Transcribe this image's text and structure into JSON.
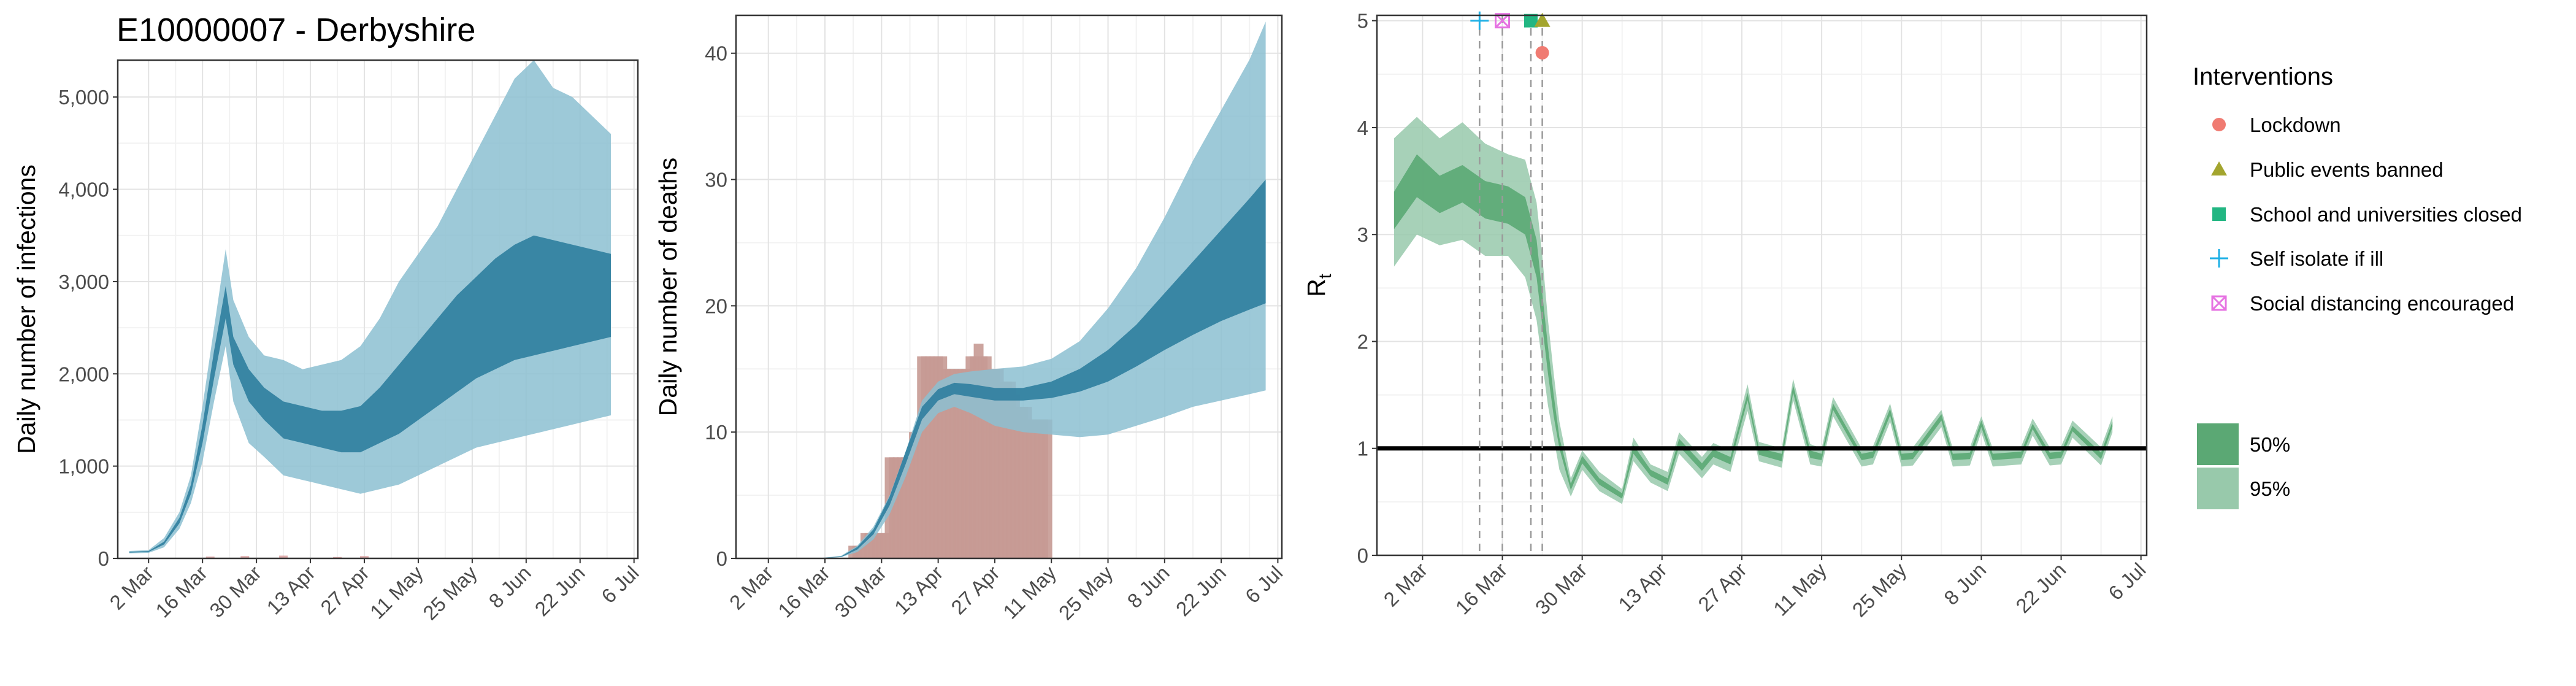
{
  "title": "E10000007 - Derbyshire",
  "colors": {
    "blue_band_95": "#8cbfd1",
    "blue_band_50": "#2f7e9f",
    "bars_infections": "#d89a9a",
    "bars_deaths": "#c79a94",
    "green_band_95": "#98c9ab",
    "green_band_50": "#5ba874",
    "lockdown": "#f07b72",
    "public_events": "#a3a52e",
    "schools": "#22b682",
    "self_isolate": "#1eb0e6",
    "social_distancing": "#e673e2"
  },
  "x_ticks": [
    "2 Mar",
    "16 Mar",
    "30 Mar",
    "13 Apr",
    "27 Apr",
    "11 May",
    "25 May",
    "8 Jun",
    "22 Jun",
    "6 Jul"
  ],
  "panels": {
    "infections": {
      "ylabel": "Daily number of infections",
      "y_ticks": [
        "0",
        "1,000",
        "2,000",
        "3,000",
        "4,000",
        "5,000"
      ]
    },
    "deaths": {
      "ylabel": "Daily number of deaths",
      "y_ticks": [
        "0",
        "10",
        "20",
        "30",
        "40"
      ]
    },
    "rt": {
      "ylabel": "R",
      "ylabel_sub": "t",
      "y_ticks": [
        "0",
        "1",
        "2",
        "3",
        "4",
        "5"
      ]
    }
  },
  "legend": {
    "title": "Interventions",
    "items": [
      {
        "label": "Lockdown",
        "icon": "circle-icon"
      },
      {
        "label": "Public events banned",
        "icon": "triangle-icon"
      },
      {
        "label": "School and universities closed",
        "icon": "square-icon"
      },
      {
        "label": "Self isolate if ill",
        "icon": "plus-icon"
      },
      {
        "label": "Social distancing encouraged",
        "icon": "boxed-x-icon"
      }
    ],
    "ci": [
      {
        "label": "50%"
      },
      {
        "label": "95%"
      }
    ]
  },
  "chart_data": [
    {
      "type": "area",
      "title": "E10000007 - Derbyshire",
      "ylabel": "Daily number of infections",
      "x_type": "date",
      "xlim": [
        "2020-02-23",
        "2020-07-07"
      ],
      "ylim": [
        0,
        5400
      ],
      "series": [
        {
          "name": "95%",
          "x": [
            "2020-02-26",
            "2020-03-02",
            "2020-03-06",
            "2020-03-10",
            "2020-03-13",
            "2020-03-16",
            "2020-03-19",
            "2020-03-22",
            "2020-03-24",
            "2020-03-28",
            "2020-04-01",
            "2020-04-06",
            "2020-04-11",
            "2020-04-16",
            "2020-04-21",
            "2020-04-26",
            "2020-05-01",
            "2020-05-06",
            "2020-05-11",
            "2020-05-16",
            "2020-05-21",
            "2020-05-26",
            "2020-05-31",
            "2020-06-05",
            "2020-06-10",
            "2020-06-15",
            "2020-06-20",
            "2020-06-25",
            "2020-06-30"
          ],
          "lower": [
            55,
            60,
            120,
            320,
            600,
            1050,
            1700,
            2300,
            1700,
            1250,
            1100,
            900,
            850,
            800,
            750,
            700,
            750,
            800,
            900,
            1000,
            1100,
            1200,
            1250,
            1300,
            1350,
            1400,
            1450,
            1500,
            1550
          ],
          "upper": [
            80,
            90,
            220,
            500,
            900,
            1650,
            2500,
            3350,
            2800,
            2400,
            2200,
            2150,
            2050,
            2100,
            2150,
            2300,
            2600,
            3000,
            3300,
            3600,
            4000,
            4400,
            4800,
            5200,
            5400,
            5100,
            5000,
            4800,
            4600
          ]
        },
        {
          "name": "50%",
          "x": [
            "2020-02-26",
            "2020-03-02",
            "2020-03-06",
            "2020-03-10",
            "2020-03-13",
            "2020-03-16",
            "2020-03-19",
            "2020-03-22",
            "2020-03-24",
            "2020-03-28",
            "2020-04-01",
            "2020-04-06",
            "2020-04-11",
            "2020-04-16",
            "2020-04-21",
            "2020-04-26",
            "2020-05-01",
            "2020-05-06",
            "2020-05-11",
            "2020-05-16",
            "2020-05-21",
            "2020-05-26",
            "2020-05-31",
            "2020-06-05",
            "2020-06-10",
            "2020-06-15",
            "2020-06-20",
            "2020-06-25",
            "2020-06-30"
          ],
          "lower": [
            62,
            70,
            150,
            380,
            700,
            1250,
            1950,
            2600,
            2100,
            1700,
            1500,
            1300,
            1250,
            1200,
            1150,
            1150,
            1250,
            1350,
            1500,
            1650,
            1800,
            1950,
            2050,
            2150,
            2200,
            2250,
            2300,
            2350,
            2400
          ],
          "upper": [
            72,
            80,
            180,
            440,
            800,
            1450,
            2250,
            2950,
            2400,
            2050,
            1850,
            1700,
            1650,
            1600,
            1600,
            1650,
            1850,
            2100,
            2350,
            2600,
            2850,
            3050,
            3250,
            3400,
            3500,
            3450,
            3400,
            3350,
            3300
          ]
        }
      ],
      "bars": {
        "x": [
          "2020-03-18",
          "2020-03-27",
          "2020-04-06",
          "2020-04-20",
          "2020-04-27"
        ],
        "values": [
          20,
          25,
          30,
          15,
          25
        ]
      }
    },
    {
      "type": "area",
      "ylabel": "Daily number of deaths",
      "x_type": "date",
      "xlim": [
        "2020-02-23",
        "2020-07-07"
      ],
      "ylim": [
        0,
        43
      ],
      "series": [
        {
          "name": "95%",
          "x": [
            "2020-03-14",
            "2020-03-20",
            "2020-03-24",
            "2020-03-28",
            "2020-04-01",
            "2020-04-05",
            "2020-04-09",
            "2020-04-13",
            "2020-04-17",
            "2020-04-21",
            "2020-04-27",
            "2020-05-04",
            "2020-05-11",
            "2020-05-18",
            "2020-05-25",
            "2020-06-01",
            "2020-06-08",
            "2020-06-15",
            "2020-06-22",
            "2020-06-29",
            "2020-07-03"
          ],
          "lower": [
            0,
            0.1,
            0.5,
            1.5,
            3.5,
            6.5,
            10,
            11.5,
            12,
            11.5,
            10.5,
            10,
            9.8,
            9.6,
            9.8,
            10.5,
            11.2,
            12,
            12.5,
            13,
            13.3
          ],
          "upper": [
            0,
            0.2,
            1,
            2.5,
            5,
            8.5,
            12.5,
            14,
            14.6,
            14.8,
            15,
            15.2,
            15.8,
            17.2,
            19.8,
            23,
            27,
            31.5,
            35.5,
            39.5,
            42.5
          ]
        },
        {
          "name": "50%",
          "x": [
            "2020-03-14",
            "2020-03-20",
            "2020-03-24",
            "2020-03-28",
            "2020-04-01",
            "2020-04-05",
            "2020-04-09",
            "2020-04-13",
            "2020-04-17",
            "2020-04-21",
            "2020-04-27",
            "2020-05-04",
            "2020-05-11",
            "2020-05-18",
            "2020-05-25",
            "2020-06-01",
            "2020-06-08",
            "2020-06-15",
            "2020-06-22",
            "2020-06-29",
            "2020-07-03"
          ],
          "lower": [
            0,
            0.1,
            0.7,
            1.9,
            4.2,
            7.5,
            11,
            12.5,
            13,
            12.8,
            12.5,
            12.5,
            12.7,
            13.2,
            14,
            15.2,
            16.5,
            17.7,
            18.8,
            19.7,
            20.2
          ],
          "upper": [
            0,
            0.15,
            0.9,
            2.3,
            4.9,
            8.5,
            12,
            13.4,
            13.9,
            13.8,
            13.5,
            13.5,
            14,
            15,
            16.5,
            18.5,
            21,
            23.5,
            26,
            28.5,
            30
          ]
        }
      ],
      "bars": {
        "x": [
          "2020-03-23",
          "2020-03-24",
          "2020-03-25",
          "2020-03-26",
          "2020-03-27",
          "2020-03-28",
          "2020-03-29",
          "2020-03-30",
          "2020-03-31",
          "2020-04-01",
          "2020-04-02",
          "2020-04-03",
          "2020-04-04",
          "2020-04-05",
          "2020-04-06",
          "2020-04-07",
          "2020-04-08",
          "2020-04-09",
          "2020-04-10",
          "2020-04-11",
          "2020-04-12",
          "2020-04-13",
          "2020-04-14",
          "2020-04-15",
          "2020-04-16",
          "2020-04-17",
          "2020-04-18",
          "2020-04-19",
          "2020-04-20",
          "2020-04-21",
          "2020-04-22",
          "2020-04-23",
          "2020-04-24",
          "2020-04-25",
          "2020-04-26",
          "2020-04-27",
          "2020-04-28",
          "2020-04-29",
          "2020-04-30",
          "2020-05-01",
          "2020-05-02",
          "2020-05-03",
          "2020-05-04",
          "2020-05-05",
          "2020-05-06",
          "2020-05-07",
          "2020-05-08",
          "2020-05-09",
          "2020-05-10"
        ],
        "values": [
          1,
          1,
          1,
          2,
          2,
          2,
          2,
          2,
          2,
          8,
          8,
          8,
          8,
          8,
          8,
          10,
          10,
          16,
          16,
          16,
          16,
          16,
          16,
          15,
          15,
          15,
          15,
          15,
          15,
          16,
          16,
          17,
          16,
          16,
          15,
          15,
          15,
          14,
          14,
          14,
          13,
          12,
          12,
          12,
          11,
          11,
          11,
          11,
          11
        ]
      }
    },
    {
      "type": "area",
      "ylabel": "R_t",
      "x_type": "date",
      "xlim": [
        "2020-02-23",
        "2020-07-07"
      ],
      "ylim": [
        0,
        5.05
      ],
      "hline": 1,
      "series": [
        {
          "name": "95%",
          "x": [
            "2020-02-26",
            "2020-03-01",
            "2020-03-05",
            "2020-03-09",
            "2020-03-13",
            "2020-03-17",
            "2020-03-20",
            "2020-03-22",
            "2020-03-23",
            "2020-03-24",
            "2020-03-25",
            "2020-03-26",
            "2020-03-28",
            "2020-03-30",
            "2020-04-02",
            "2020-04-06",
            "2020-04-08",
            "2020-04-11",
            "2020-04-14",
            "2020-04-16",
            "2020-04-20",
            "2020-04-22",
            "2020-04-25",
            "2020-04-28",
            "2020-04-30",
            "2020-05-04",
            "2020-05-06",
            "2020-05-09",
            "2020-05-11",
            "2020-05-13",
            "2020-05-18",
            "2020-05-20",
            "2020-05-23",
            "2020-05-25",
            "2020-05-27",
            "2020-06-01",
            "2020-06-03",
            "2020-06-06",
            "2020-06-08",
            "2020-06-10",
            "2020-06-15",
            "2020-06-17",
            "2020-06-20",
            "2020-06-22",
            "2020-06-24",
            "2020-06-29",
            "2020-07-01"
          ],
          "lower": [
            2.7,
            3.0,
            2.9,
            2.95,
            2.8,
            2.8,
            2.6,
            2.2,
            1.8,
            1.4,
            1.1,
            0.8,
            0.55,
            0.8,
            0.6,
            0.48,
            0.88,
            0.68,
            0.6,
            0.95,
            0.72,
            0.85,
            0.78,
            1.35,
            0.88,
            0.82,
            1.45,
            0.85,
            0.83,
            1.3,
            0.83,
            0.85,
            1.25,
            0.83,
            0.84,
            1.2,
            0.83,
            0.84,
            1.15,
            0.83,
            0.85,
            1.12,
            0.84,
            0.85,
            1.1,
            0.84,
            1.15
          ],
          "upper": [
            3.9,
            4.1,
            3.9,
            4.05,
            3.85,
            3.75,
            3.7,
            3.3,
            2.8,
            2.2,
            1.7,
            1.25,
            0.72,
            0.98,
            0.78,
            0.62,
            1.1,
            0.85,
            0.78,
            1.15,
            0.92,
            1.05,
            0.98,
            1.6,
            1.06,
            1.0,
            1.65,
            1.04,
            1.0,
            1.48,
            1.0,
            1.02,
            1.42,
            1.0,
            1.01,
            1.36,
            1.0,
            1.01,
            1.3,
            1.0,
            1.02,
            1.28,
            1.01,
            1.02,
            1.26,
            1.01,
            1.3
          ]
        },
        {
          "name": "50%",
          "x": [
            "2020-02-26",
            "2020-03-01",
            "2020-03-05",
            "2020-03-09",
            "2020-03-13",
            "2020-03-17",
            "2020-03-20",
            "2020-03-22",
            "2020-03-23",
            "2020-03-24",
            "2020-03-25",
            "2020-03-26",
            "2020-03-28",
            "2020-03-30",
            "2020-04-02",
            "2020-04-06",
            "2020-04-08",
            "2020-04-11",
            "2020-04-14",
            "2020-04-16",
            "2020-04-20",
            "2020-04-22",
            "2020-04-25",
            "2020-04-28",
            "2020-04-30",
            "2020-05-04",
            "2020-05-06",
            "2020-05-09",
            "2020-05-11",
            "2020-05-13",
            "2020-05-18",
            "2020-05-20",
            "2020-05-23",
            "2020-05-25",
            "2020-05-27",
            "2020-06-01",
            "2020-06-03",
            "2020-06-06",
            "2020-06-08",
            "2020-06-10",
            "2020-06-15",
            "2020-06-17",
            "2020-06-20",
            "2020-06-22",
            "2020-06-24",
            "2020-06-29",
            "2020-07-01"
          ],
          "lower": [
            3.05,
            3.35,
            3.2,
            3.3,
            3.15,
            3.1,
            3.0,
            2.6,
            2.15,
            1.7,
            1.3,
            1.0,
            0.61,
            0.86,
            0.66,
            0.53,
            0.95,
            0.74,
            0.66,
            1.02,
            0.79,
            0.92,
            0.85,
            1.45,
            0.94,
            0.88,
            1.52,
            0.91,
            0.89,
            1.36,
            0.89,
            0.91,
            1.31,
            0.89,
            0.9,
            1.26,
            0.89,
            0.9,
            1.2,
            0.89,
            0.91,
            1.18,
            0.9,
            0.91,
            1.16,
            0.9,
            1.2
          ],
          "upper": [
            3.4,
            3.75,
            3.55,
            3.65,
            3.5,
            3.45,
            3.35,
            2.95,
            2.45,
            1.95,
            1.5,
            1.1,
            0.67,
            0.93,
            0.72,
            0.58,
            1.03,
            0.8,
            0.72,
            1.09,
            0.86,
            0.99,
            0.92,
            1.52,
            1.0,
            0.95,
            1.59,
            0.98,
            0.95,
            1.42,
            0.95,
            0.97,
            1.37,
            0.95,
            0.96,
            1.32,
            0.95,
            0.96,
            1.26,
            0.95,
            0.97,
            1.23,
            0.96,
            0.97,
            1.21,
            0.96,
            1.25
          ]
        }
      ],
      "interventions": [
        {
          "name": "Self isolate if ill",
          "date": "2020-03-12",
          "marker": "plus",
          "y": 5.0
        },
        {
          "name": "Social distancing encouraged",
          "date": "2020-03-16",
          "marker": "boxed-x",
          "y": 5.0
        },
        {
          "name": "School and universities closed",
          "date": "2020-03-21",
          "marker": "square",
          "y": 5.0
        },
        {
          "name": "Public events banned",
          "date": "2020-03-23",
          "marker": "triangle",
          "y": 5.0
        },
        {
          "name": "Lockdown",
          "date": "2020-03-23",
          "marker": "circle",
          "y": 4.7
        }
      ]
    }
  ]
}
